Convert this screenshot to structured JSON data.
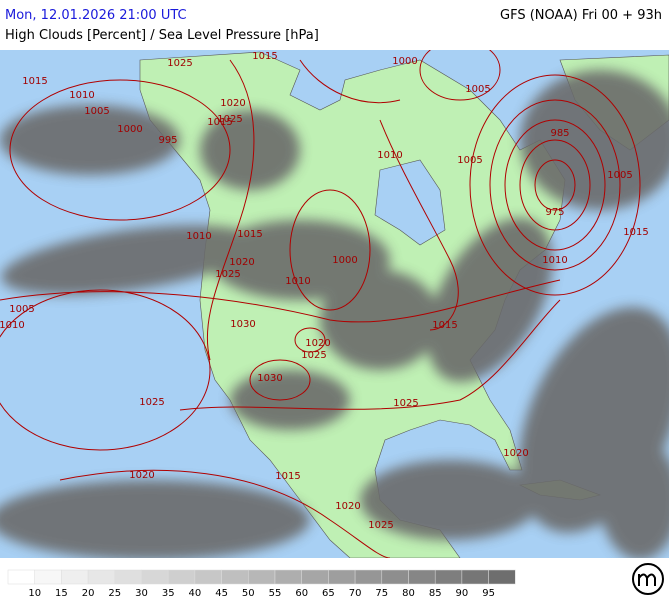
{
  "header": {
    "date": "Mon, 12.01.2026 21:00 UTC",
    "model": "GFS (NOAA) Fri 00 + 93h",
    "title": "High Clouds [Percent] / Sea Level Pressure [hPa]"
  },
  "legend": {
    "ticks": [
      10,
      15,
      20,
      25,
      30,
      35,
      40,
      45,
      50,
      55,
      60,
      65,
      70,
      75,
      80,
      85,
      90,
      95
    ]
  },
  "isobars": [
    "1015",
    "1025",
    "1015",
    "1000",
    "1005",
    "1010",
    "1005",
    "1000",
    "995",
    "985",
    "975",
    "1005",
    "1015",
    "1010",
    "1020",
    "1025",
    "1010",
    "1005",
    "1000",
    "1010",
    "1015",
    "1005",
    "1010",
    "1030",
    "1020",
    "1025",
    "1030",
    "1025",
    "1025",
    "1020",
    "1020",
    "1015",
    "1020",
    "1025",
    "1015",
    "1010",
    "1015",
    "1020",
    "1025"
  ]
}
